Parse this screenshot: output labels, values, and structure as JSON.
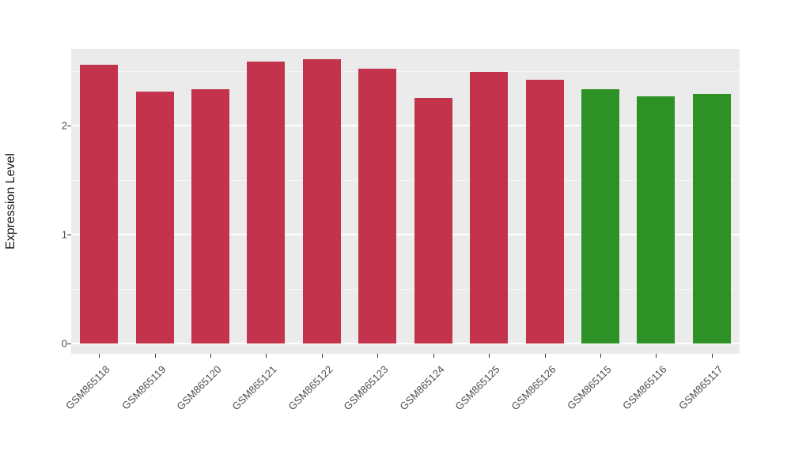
{
  "chart_data": {
    "type": "bar",
    "title": "",
    "xlabel": "",
    "ylabel": "Expression Level",
    "categories": [
      "GSM865118",
      "GSM865119",
      "GSM865120",
      "GSM865121",
      "GSM865122",
      "GSM865123",
      "GSM865124",
      "GSM865125",
      "GSM865126",
      "GSM865115",
      "GSM865116",
      "GSM865117"
    ],
    "values": [
      2.56,
      2.31,
      2.33,
      2.59,
      2.61,
      2.52,
      2.25,
      2.49,
      2.42,
      2.33,
      2.27,
      2.29
    ],
    "group_colors": [
      "red",
      "red",
      "red",
      "red",
      "red",
      "red",
      "red",
      "red",
      "red",
      "green",
      "green",
      "green"
    ],
    "palette": {
      "red": "#C3344C",
      "green": "#2E9125"
    },
    "ylim": [
      0,
      2.7
    ],
    "yticks": [
      "0",
      "1",
      "2"
    ],
    "ytick_values": [
      0,
      1,
      2
    ],
    "minor_tick_values": [
      0.5,
      1.5,
      2.5
    ],
    "legend_position": "none",
    "grid": "on",
    "panel_background": "#EBEBEB",
    "grid_major_color": "#FFFFFF",
    "grid_minor_color": "rgba(255,255,255,0.55)"
  }
}
